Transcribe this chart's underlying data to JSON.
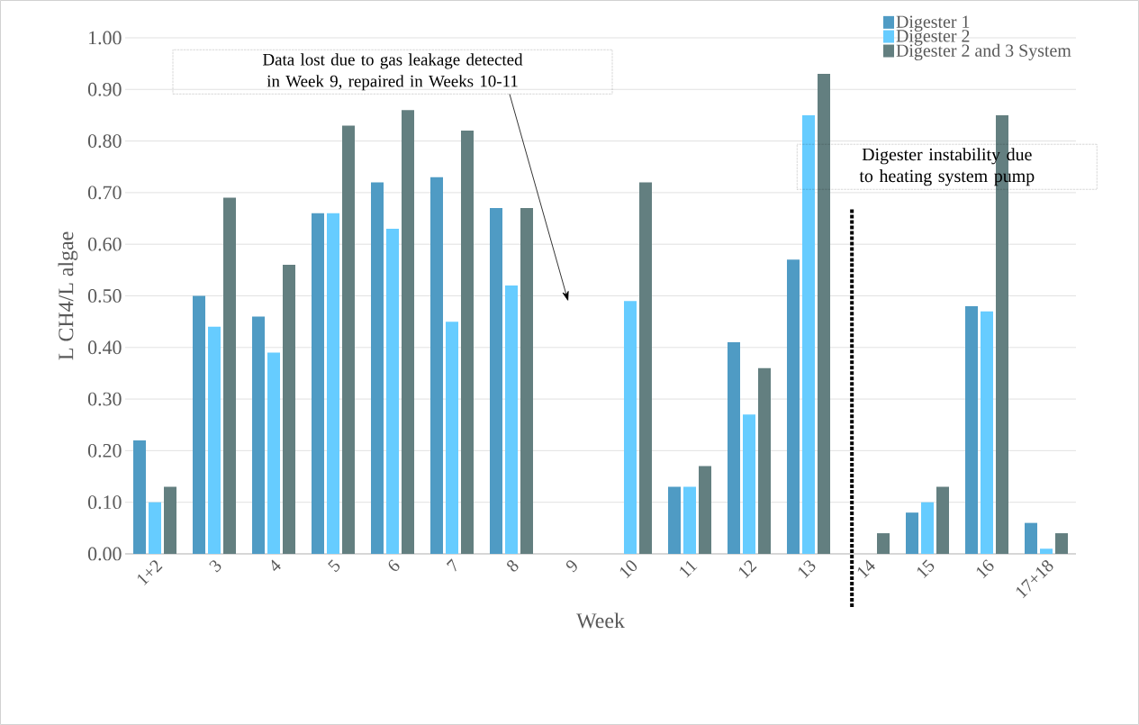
{
  "chart_data": {
    "type": "bar",
    "categories": [
      "1+2",
      "3",
      "4",
      "5",
      "6",
      "7",
      "8",
      "9",
      "10",
      "11",
      "12",
      "13",
      "14",
      "15",
      "16",
      "17+18"
    ],
    "series": [
      {
        "name": "Digester 1",
        "color": "#4f9bc4",
        "values": [
          0.22,
          0.5,
          0.46,
          0.66,
          0.72,
          0.73,
          0.67,
          null,
          null,
          0.13,
          0.41,
          0.57,
          null,
          0.08,
          0.48,
          0.06
        ]
      },
      {
        "name": "Digester 2",
        "color": "#66ccff",
        "values": [
          0.1,
          0.44,
          0.39,
          0.66,
          0.63,
          0.45,
          0.52,
          null,
          0.49,
          0.13,
          0.27,
          0.85,
          null,
          0.1,
          0.47,
          0.01
        ]
      },
      {
        "name": "Digester 2 and 3 System",
        "color": "#637f80",
        "values": [
          0.13,
          0.69,
          0.56,
          0.83,
          0.86,
          0.82,
          0.67,
          null,
          0.72,
          0.17,
          0.36,
          0.93,
          0.04,
          0.13,
          0.85,
          0.04
        ]
      }
    ],
    "xlabel": "Week",
    "ylabel": "L CH4/L algae",
    "ylim": [
      0,
      1.0
    ],
    "yticks": [
      {
        "value": 0,
        "label": "0.00"
      },
      {
        "value": 0.1,
        "label": "0.10"
      },
      {
        "value": 0.2,
        "label": "0.20"
      },
      {
        "value": 0.3,
        "label": "0.30"
      },
      {
        "value": 0.4,
        "label": "0.40"
      },
      {
        "value": 0.5,
        "label": "0.50"
      },
      {
        "value": 0.6,
        "label": "0.60"
      },
      {
        "value": 0.7,
        "label": "0.70"
      },
      {
        "value": 0.8,
        "label": "0.80"
      },
      {
        "value": 0.9,
        "label": "0.90"
      },
      {
        "value": 1.0,
        "label": "1.00"
      }
    ],
    "annotations": [
      "Data lost due to gas leakage detected in Week 9, repaired in Weeks 10-11"
    ],
    "ref_lines": [
      {
        "axis": "x",
        "value": "14",
        "label": "Digester instability due to heating system pump",
        "line_style": "dotted"
      }
    ],
    "grid": "y",
    "legend": "top right"
  }
}
